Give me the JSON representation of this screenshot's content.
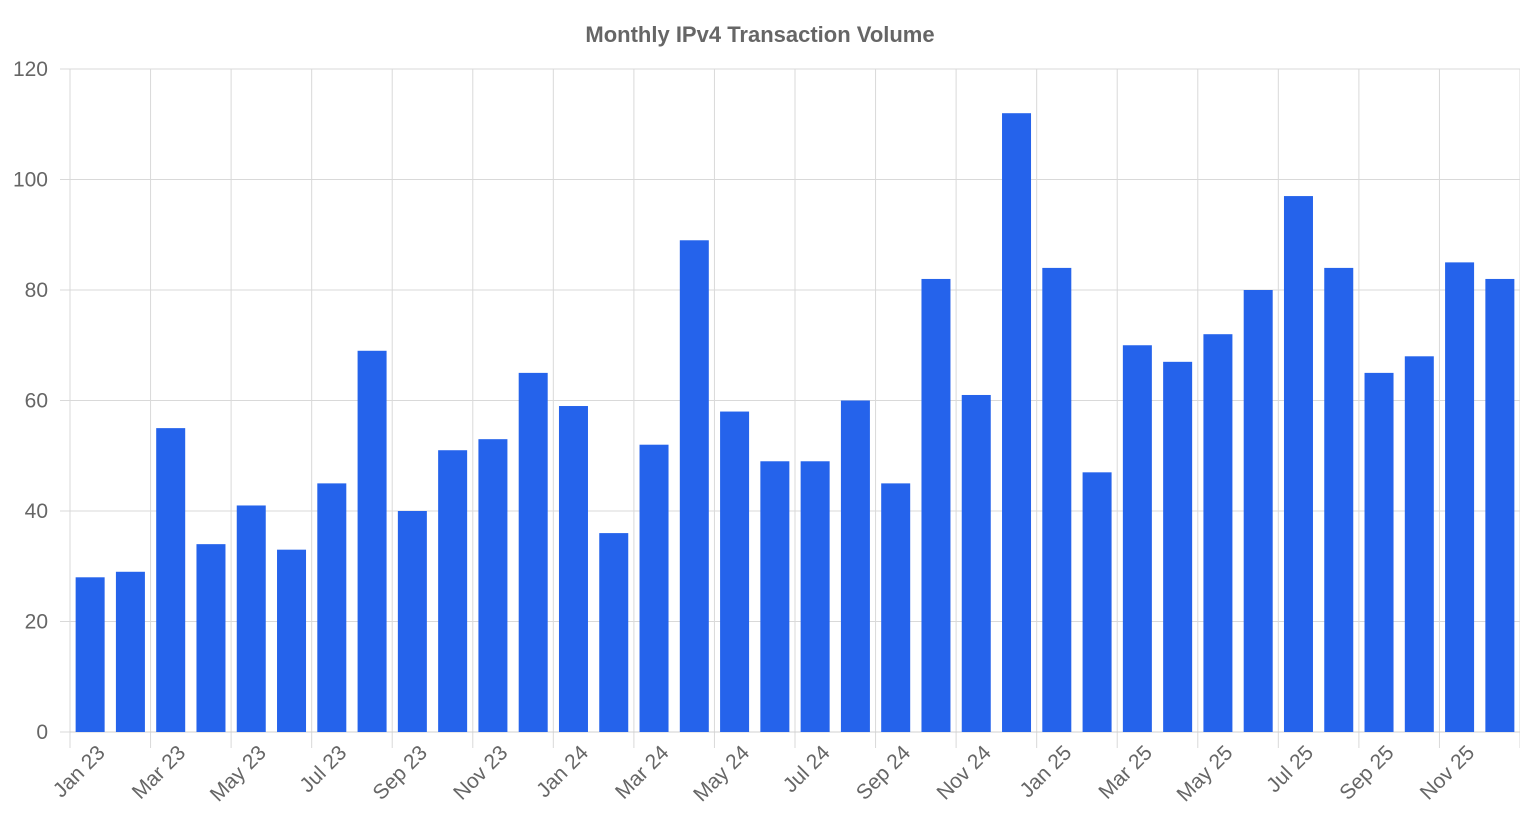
{
  "chart_data": {
    "type": "bar",
    "title": "Monthly IPv4 Transaction Volume",
    "xlabel": "",
    "ylabel": "",
    "ylim": [
      0,
      120
    ],
    "yticks": [
      0,
      20,
      40,
      60,
      80,
      100,
      120
    ],
    "grid": true,
    "legend": "none",
    "bar_color": "#2563eb",
    "categories": [
      "Jan 23",
      "Feb 23",
      "Mar 23",
      "Apr 23",
      "May 23",
      "Jun 23",
      "Jul 23",
      "Aug 23",
      "Sep 23",
      "Oct 23",
      "Nov 23",
      "Dec 23",
      "Jan 24",
      "Feb 24",
      "Mar 24",
      "Apr 24",
      "May 24",
      "Jun 24",
      "Jul 24",
      "Aug 24",
      "Sep 24",
      "Oct 24",
      "Nov 24",
      "Dec 24",
      "Jan 25",
      "Feb 25",
      "Mar 25",
      "Apr 25",
      "May 25",
      "Jun 25",
      "Jul 25",
      "Aug 25",
      "Sep 25",
      "Oct 25",
      "Nov 25",
      "Dec 25"
    ],
    "xtick_labels": [
      "Jan 23",
      "Mar 23",
      "May 23",
      "Jul 23",
      "Sep 23",
      "Nov 23",
      "Jan 24",
      "Mar 24",
      "May 24",
      "Jul 24",
      "Sep 24",
      "Nov 24",
      "Jan 25",
      "Mar 25",
      "May 25",
      "Jul 25",
      "Sep 25",
      "Nov 25"
    ],
    "values": [
      28,
      29,
      55,
      34,
      41,
      33,
      45,
      69,
      40,
      51,
      53,
      65,
      59,
      36,
      52,
      89,
      58,
      49,
      49,
      60,
      45,
      82,
      61,
      112,
      84,
      47,
      70,
      67,
      72,
      80,
      97,
      84,
      65,
      68,
      85,
      82
    ]
  }
}
